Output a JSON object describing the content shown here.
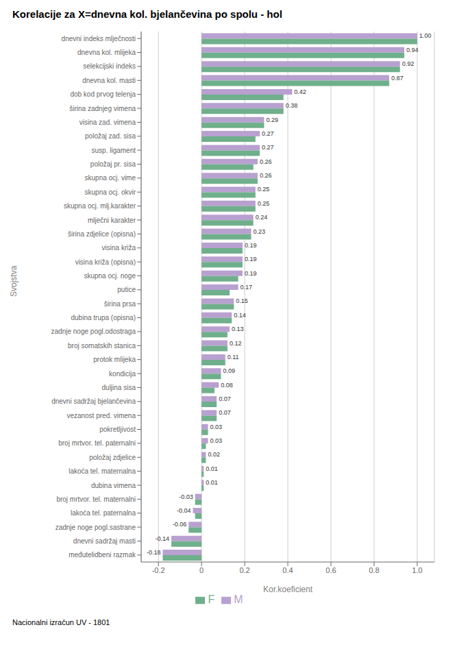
{
  "chart_data": {
    "type": "bar",
    "orientation": "horizontal",
    "title": "Korelacije za X=dnevna kol. bjelančevina po spolu - hol",
    "xlabel": "Kor.koeficient",
    "ylabel": "Svojstva",
    "footnote": "Nacionalni izračun UV - 1801",
    "categories": [
      "dnevni indeks mlječnosti",
      "dnevna kol. mlijeka",
      "selekcijski indeks",
      "dnevna kol. masti",
      "dob kod prvog telenja",
      "širina zadnjeg vimena",
      "visina zad. vimena",
      "položaj zad. sisa",
      "susp. ligament",
      "položaj pr. sisa",
      "skupna ocj. vime",
      "skupna ocj. okvir",
      "skupna ocj. mlj.karakter",
      "mlječni karakter",
      "širina zdjelice (opisna)",
      "visina križa",
      "visina križa (opisna)",
      "skupna ocj. noge",
      "putice",
      "širina prsa",
      "dubina trupa (opisna)",
      "zadnje noge pogl.odostraga",
      "broj somatskih stanica",
      "protok mlijeka",
      "kondicija",
      "duljina sisa",
      "dnevni sadržaj bjelančevina",
      "vezanost pred. vimena",
      "pokretljivost",
      "broj mrtvor. tel. paternalni",
      "položaj zdjelice",
      "lakoća tel. maternalna",
      "dubina vimena",
      "broj mrtvor. tel. maternalni",
      "lakoća tel. paternalna",
      "zadnje noge pogl.sastrane",
      "dnevni sadržaj masti",
      "međutelidbeni razmak"
    ],
    "series": [
      {
        "name": "M",
        "color": "#b8a0d0",
        "values": [
          1.0,
          0.94,
          0.92,
          0.87,
          0.42,
          0.38,
          0.29,
          0.27,
          0.27,
          0.26,
          0.26,
          0.25,
          0.25,
          0.24,
          0.23,
          0.19,
          0.19,
          0.19,
          0.17,
          0.15,
          0.14,
          0.13,
          0.12,
          0.11,
          0.09,
          0.08,
          0.07,
          0.07,
          0.03,
          0.03,
          0.02,
          0.01,
          0.01,
          -0.03,
          -0.04,
          -0.06,
          -0.14,
          -0.18
        ],
        "value_labels": [
          "1.00",
          "0.94",
          "0.92",
          "0.87",
          "0.42",
          "0.38",
          "0.29",
          "0.27",
          "0.27",
          "0.26",
          "0.26",
          "0.25",
          "0.25",
          "0.24",
          "0.23",
          "0.19",
          "0.19",
          "0.19",
          "0.17",
          "0.15",
          "0.14",
          "0.13",
          "0.12",
          "0.11",
          "0.09",
          "0.08",
          "0.07",
          "0.07",
          "0.03",
          "0.03",
          "0.02",
          "0.01",
          "0.01",
          "-0.03",
          "-0.04",
          "-0.06",
          "-0.14",
          "-0.18"
        ]
      },
      {
        "name": "F",
        "color": "#6faf8b",
        "values": [
          1.0,
          0.94,
          0.92,
          0.87,
          0.38,
          0.38,
          0.29,
          0.25,
          0.27,
          0.24,
          0.26,
          0.25,
          0.25,
          0.24,
          0.23,
          0.19,
          0.19,
          0.17,
          0.13,
          0.15,
          0.14,
          0.12,
          0.12,
          0.11,
          0.09,
          0.06,
          0.07,
          0.07,
          0.03,
          0.02,
          0.02,
          0.01,
          0.01,
          -0.03,
          -0.03,
          -0.06,
          -0.14,
          -0.18
        ]
      }
    ],
    "xlim": [
      -0.28,
      1.08
    ],
    "xticks": [
      -0.2,
      0,
      0.2,
      0.4,
      0.6,
      0.8,
      {
        "value": 1.0,
        "label": "1.0"
      }
    ],
    "grid": true,
    "legend": "bottom"
  }
}
